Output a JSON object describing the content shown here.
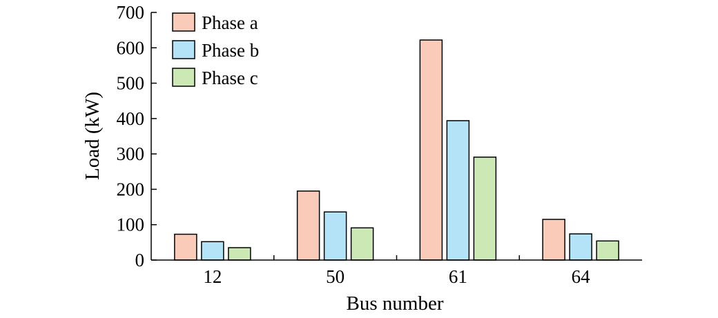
{
  "chart_data": {
    "type": "bar",
    "categories": [
      "12",
      "50",
      "61",
      "64"
    ],
    "series": [
      {
        "name": "Phase a",
        "color": "#f9cbb8",
        "values": [
          73,
          195,
          622,
          115
        ]
      },
      {
        "name": "Phase b",
        "color": "#b4e3f7",
        "values": [
          52,
          136,
          394,
          74
        ]
      },
      {
        "name": "Phase c",
        "color": "#cce8b5",
        "values": [
          35,
          91,
          291,
          54
        ]
      }
    ],
    "title": "",
    "xlabel": "Bus number",
    "ylabel": "Load (kW)",
    "ylim": [
      0,
      700
    ],
    "yticks": [
      "0",
      "100",
      "200",
      "300",
      "400",
      "500",
      "600",
      "700"
    ],
    "grid": false,
    "legend_position": "top-left"
  }
}
